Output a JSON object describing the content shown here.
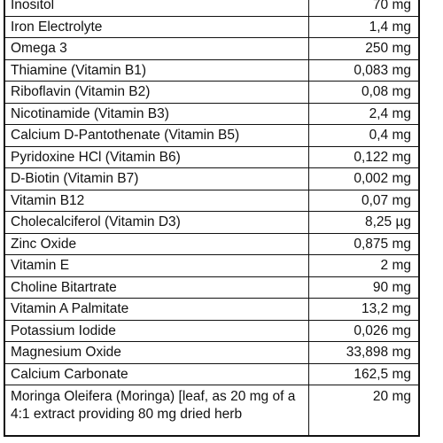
{
  "rows": [
    {
      "name": "Inositol",
      "amount": "70 mg"
    },
    {
      "name": "Iron Electrolyte",
      "amount": "1,4 mg"
    },
    {
      "name": "Omega 3",
      "amount": "250 mg"
    },
    {
      "name": "Thiamine (Vitamin B1)",
      "amount": "0,083 mg"
    },
    {
      "name": "Riboflavin (Vitamin B2)",
      "amount": "0,08 mg"
    },
    {
      "name": "Nicotinamide (Vitamin B3)",
      "amount": "2,4 mg"
    },
    {
      "name": "Calcium D-Pantothenate (Vitamin B5)",
      "amount": "0,4 mg"
    },
    {
      "name": "Pyridoxine HCl (Vitamin B6)",
      "amount": "0,122 mg"
    },
    {
      "name": "D-Biotin (Vitamin B7)",
      "amount": "0,002 mg"
    },
    {
      "name": "Vitamin B12",
      "amount": "0,07 mg"
    },
    {
      "name": "Cholecalciferol (Vitamin D3)",
      "amount": "8,25 µg"
    },
    {
      "name": "Zinc Oxide",
      "amount": "0,875 mg"
    },
    {
      "name": "Vitamin E",
      "amount": "2 mg"
    },
    {
      "name": "Choline Bitartrate",
      "amount": "90 mg"
    },
    {
      "name": "Vitamin A Palmitate",
      "amount": "13,2 mg"
    },
    {
      "name": "Potassium Iodide",
      "amount": "0,026 mg"
    },
    {
      "name": "Magnesium Oxide",
      "amount": "33,898 mg"
    },
    {
      "name": "Calcium Carbonate",
      "amount": "162,5 mg"
    },
    {
      "name": "Moringa Oleifera (Moringa) [leaf, as 20 mg of a 4:1 extract providing 80 mg dried herb",
      "amount": "20 mg"
    }
  ]
}
